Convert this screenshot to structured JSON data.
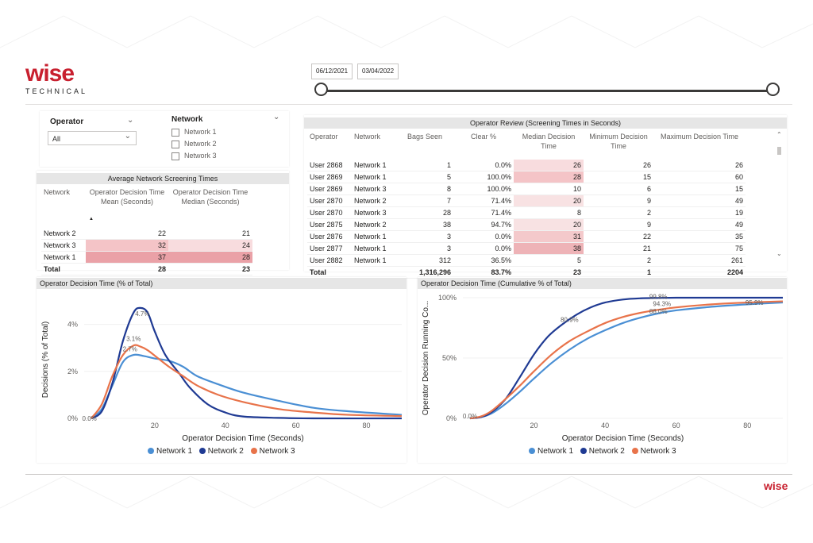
{
  "brand": {
    "logo_mark": "wise",
    "logo_sub": "TECHNICAL",
    "logo_small": "wise"
  },
  "date_slider": {
    "start": "06/12/2021",
    "end": "03/04/2022"
  },
  "filters": {
    "operator": {
      "label": "Operator",
      "selected": "All"
    },
    "network": {
      "label": "Network",
      "options": [
        "Network 1",
        "Network 2",
        "Network 3"
      ]
    }
  },
  "avg_table": {
    "title": "Average Network Screening Times",
    "headers": [
      "Network",
      "Operator Decision Time Mean (Seconds)",
      "Operator Decision Time Median (Seconds)"
    ],
    "rows": [
      {
        "network": "Network 2",
        "mean": "22",
        "median": "21"
      },
      {
        "network": "Network 3",
        "mean": "32",
        "median": "24"
      },
      {
        "network": "Network 1",
        "mean": "37",
        "median": "28"
      }
    ],
    "total": {
      "label": "Total",
      "mean": "28",
      "median": "23"
    }
  },
  "review_table": {
    "title": "Operator Review (Screening Times in Seconds)",
    "headers": [
      "Operator",
      "Network",
      "Bags Seen",
      "Clear %",
      "Median Decision Time",
      "Minimum Decision Time",
      "Maximum Decision Time"
    ],
    "rows": [
      [
        "User 2868",
        "Network 1",
        "1",
        "0.0%",
        "26",
        "26",
        "26"
      ],
      [
        "User 2869",
        "Network 1",
        "5",
        "100.0%",
        "28",
        "15",
        "60"
      ],
      [
        "User 2869",
        "Network 3",
        "8",
        "100.0%",
        "10",
        "6",
        "15"
      ],
      [
        "User 2870",
        "Network 2",
        "7",
        "71.4%",
        "20",
        "9",
        "49"
      ],
      [
        "User 2870",
        "Network 3",
        "28",
        "71.4%",
        "8",
        "2",
        "19"
      ],
      [
        "User 2875",
        "Network 2",
        "38",
        "94.7%",
        "20",
        "9",
        "49"
      ],
      [
        "User 2876",
        "Network 1",
        "3",
        "0.0%",
        "31",
        "22",
        "35"
      ],
      [
        "User 2877",
        "Network 1",
        "3",
        "0.0%",
        "38",
        "21",
        "75"
      ],
      [
        "User 2882",
        "Network 1",
        "312",
        "36.5%",
        "5",
        "2",
        "261"
      ]
    ],
    "total": [
      "Total",
      "",
      "1,316,296",
      "83.7%",
      "23",
      "1",
      "2204"
    ]
  },
  "colors": {
    "network1": "#4a8fd4",
    "network2": "#1f3a93",
    "network3": "#e8734a",
    "heat_strong": "#e8a6ab",
    "heat_light": "#f8dcde"
  },
  "chart_data": [
    {
      "type": "line",
      "title": "Operator Decision Time (% of Total)",
      "xlabel": "Operator Decision Time (Seconds)",
      "ylabel": "Decisions (% of Total)",
      "xlim": [
        0,
        90
      ],
      "ylim": [
        0,
        5
      ],
      "xticks": [
        "20",
        "40",
        "60",
        "80"
      ],
      "yticks": [
        "0%",
        "2%",
        "4%"
      ],
      "legend_position": "bottom",
      "annotations": [
        "0.0%",
        "4.7%",
        "3.1%",
        "2.7%"
      ],
      "series": [
        {
          "name": "Network 1",
          "x": [
            2,
            5,
            8,
            11,
            14,
            17,
            20,
            24,
            28,
            32,
            38,
            45,
            55,
            65,
            75,
            90
          ],
          "y": [
            0,
            0.4,
            1.4,
            2.4,
            2.7,
            2.65,
            2.55,
            2.45,
            2.2,
            1.8,
            1.45,
            1.1,
            0.75,
            0.45,
            0.3,
            0.15
          ]
        },
        {
          "name": "Network 2",
          "x": [
            2,
            5,
            8,
            11,
            14,
            16,
            18,
            20,
            23,
            27,
            30,
            35,
            40,
            45,
            55,
            65,
            90
          ],
          "y": [
            0,
            0.3,
            1.5,
            3.3,
            4.5,
            4.7,
            4.5,
            3.7,
            2.7,
            1.9,
            1.3,
            0.6,
            0.25,
            0.08,
            0.02,
            0.0,
            0.0
          ]
        },
        {
          "name": "Network 3",
          "x": [
            2,
            5,
            8,
            11,
            14,
            16,
            18,
            21,
            24,
            28,
            32,
            38,
            45,
            55,
            65,
            75,
            90
          ],
          "y": [
            0,
            0.6,
            1.8,
            2.7,
            3.1,
            3.05,
            2.9,
            2.55,
            2.2,
            1.8,
            1.4,
            1.0,
            0.7,
            0.4,
            0.25,
            0.15,
            0.1
          ]
        }
      ]
    },
    {
      "type": "line",
      "title": "Operator Decision Time (Cumulative % of Total)",
      "xlabel": "Operator Decision Time (Seconds)",
      "ylabel": "Operator Decision Running Co...",
      "xlim": [
        0,
        90
      ],
      "ylim": [
        0,
        100
      ],
      "xticks": [
        "20",
        "40",
        "60",
        "80"
      ],
      "yticks": [
        "0%",
        "50%",
        "100%"
      ],
      "legend_position": "bottom",
      "annotations": [
        "0.0%",
        "80.9%",
        "99.8%",
        "94.3%",
        "88.0%",
        "95.9%"
      ],
      "series": [
        {
          "name": "Network 1",
          "x": [
            2,
            5,
            8,
            12,
            16,
            20,
            25,
            30,
            35,
            40,
            45,
            50,
            55,
            60,
            70,
            80,
            90
          ],
          "y": [
            0,
            1,
            4,
            12,
            22,
            33,
            46,
            57,
            66,
            73,
            79,
            83.5,
            87,
            89.5,
            92.5,
            94.5,
            96
          ]
        },
        {
          "name": "Network 2",
          "x": [
            2,
            5,
            8,
            12,
            16,
            20,
            24,
            28,
            32,
            36,
            40,
            45,
            50,
            55,
            60,
            70,
            90
          ],
          "y": [
            0,
            1,
            5,
            16,
            34,
            53,
            68,
            78,
            86,
            92,
            96,
            98.5,
            99.5,
            99.8,
            100,
            100,
            100
          ]
        },
        {
          "name": "Network 3",
          "x": [
            2,
            5,
            8,
            12,
            16,
            20,
            25,
            30,
            35,
            40,
            45,
            50,
            55,
            60,
            70,
            80,
            90
          ],
          "y": [
            0,
            1.5,
            6,
            16,
            27,
            39,
            53,
            64,
            72,
            79,
            84,
            87.5,
            90,
            92,
            94.5,
            96,
            97
          ]
        }
      ]
    }
  ]
}
